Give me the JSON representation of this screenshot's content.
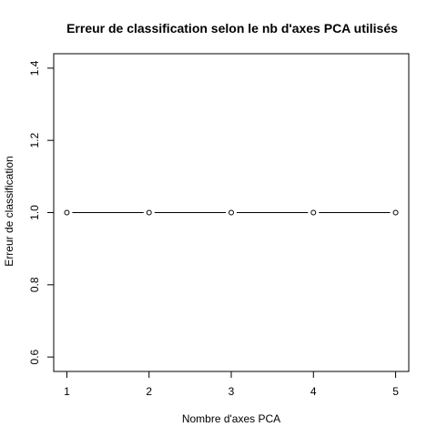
{
  "chart_data": {
    "type": "line",
    "title": "Erreur de classification selon le nb d'axes PCA utilisés",
    "xlabel": "Nombre d'axes PCA",
    "ylabel": "Erreur de classification",
    "x": [
      1,
      2,
      3,
      4,
      5
    ],
    "series": [
      {
        "values": [
          1.0,
          1.0,
          1.0,
          1.0,
          1.0
        ]
      }
    ],
    "xlim": [
      0.84,
      5.16
    ],
    "ylim": [
      0.56,
      1.44
    ],
    "xticks": [
      1,
      2,
      3,
      4,
      5
    ],
    "yticks": [
      0.6,
      0.8,
      1.0,
      1.2,
      1.4
    ],
    "ytick_labels": [
      "0.6",
      "0.8",
      "1.0",
      "1.2",
      "1.4"
    ],
    "grid": false,
    "marker": "open-circle",
    "line_style": "both-with-gaps"
  }
}
